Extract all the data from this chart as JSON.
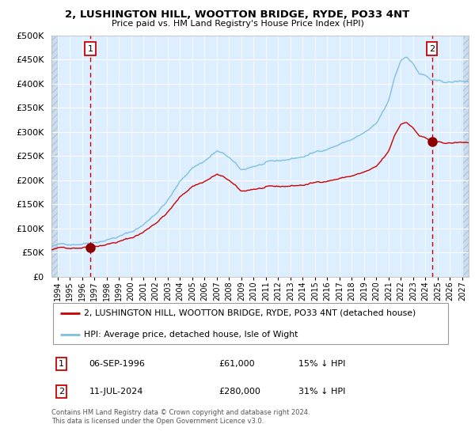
{
  "title": "2, LUSHINGTON HILL, WOOTTON BRIDGE, RYDE, PO33 4NT",
  "subtitle": "Price paid vs. HM Land Registry's House Price Index (HPI)",
  "legend_line1": "2, LUSHINGTON HILL, WOOTTON BRIDGE, RYDE, PO33 4NT (detached house)",
  "legend_line2": "HPI: Average price, detached house, Isle of Wight",
  "sale1_date": "06-SEP-1996",
  "sale1_price": 61000,
  "sale1_hpi": "15% ↓ HPI",
  "sale1_label": "1",
  "sale1_year": 1996.67,
  "sale2_date": "11-JUL-2024",
  "sale2_price": 280000,
  "sale2_hpi": "31% ↓ HPI",
  "sale2_label": "2",
  "sale2_year": 2024.53,
  "footnote": "Contains HM Land Registry data © Crown copyright and database right 2024.\nThis data is licensed under the Open Government Licence v3.0.",
  "hpi_color": "#7fbfdf",
  "price_color": "#cc0000",
  "dot_color": "#8b0000",
  "vline_color": "#cc0000",
  "bg_color": "#ddeeff",
  "hatch_bg_color": "#ccddf0",
  "grid_color": "#ffffff",
  "ylim": [
    0,
    500000
  ],
  "yticks": [
    0,
    50000,
    100000,
    150000,
    200000,
    250000,
    300000,
    350000,
    400000,
    450000,
    500000
  ],
  "xlim_start": 1993.5,
  "xlim_end": 2027.5,
  "hatch_left_end": 1994.0,
  "hatch_right_start": 2027.0
}
